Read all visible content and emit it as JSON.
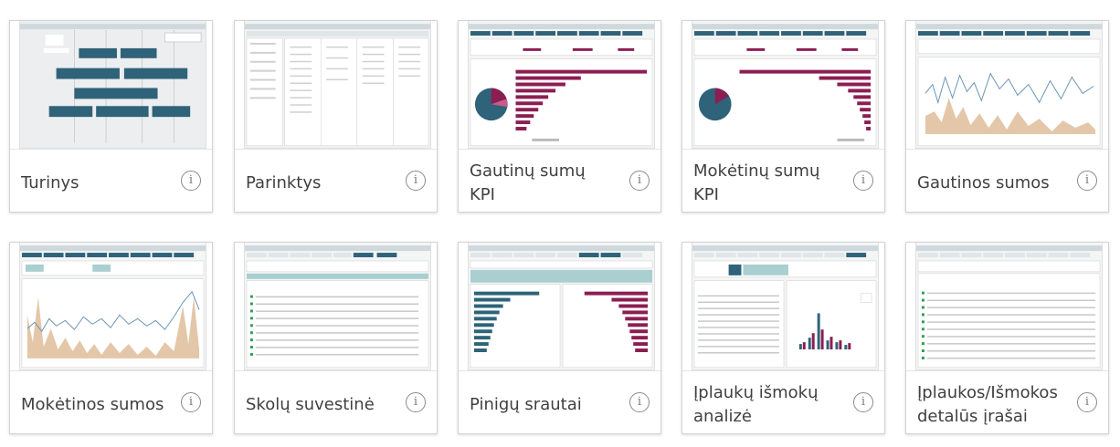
{
  "tiles": [
    {
      "title": "Turinys",
      "info_icon": "info-icon"
    },
    {
      "title": "Parinktys",
      "info_icon": "info-icon"
    },
    {
      "title": "Gautinų sumų KPI",
      "info_icon": "info-icon"
    },
    {
      "title": "Mokėtinų sumų KPI",
      "info_icon": "info-icon"
    },
    {
      "title": "Gautinos sumos",
      "info_icon": "info-icon"
    },
    {
      "title": "Mokėtinos sumos",
      "info_icon": "info-icon"
    },
    {
      "title": "Skolų suvestinė",
      "info_icon": "info-icon"
    },
    {
      "title": "Pinigų srautai",
      "info_icon": "info-icon"
    },
    {
      "title": "Įplaukų išmokų analizė",
      "info_icon": "info-icon"
    },
    {
      "title": "Įplaukos/Išmokos detalūs įrašai",
      "info_icon": "info-icon"
    }
  ],
  "info_glyph": "i",
  "colors": {
    "teal": "#2e6379",
    "maroon": "#8b1e52",
    "tan": "#e3c7a8",
    "light_teal": "#a9cfd1"
  }
}
